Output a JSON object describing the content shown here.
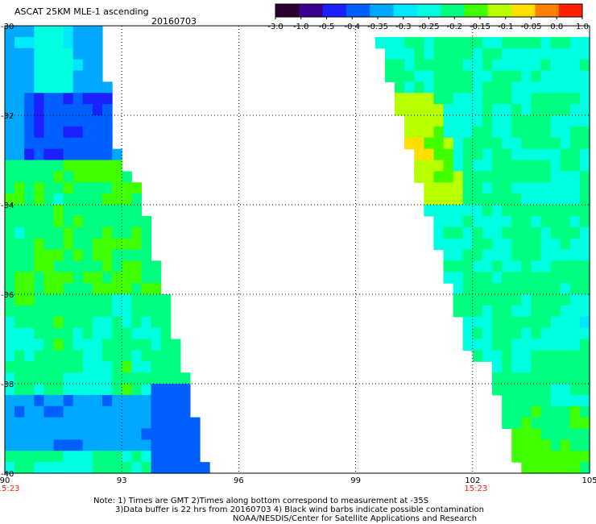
{
  "header": {
    "title": "ASCAT 25KM MLE-1 ascending",
    "date": "20160703"
  },
  "colorbar": {
    "labels": [
      "-3.0",
      "-1.0",
      "-0.5",
      "-0.4",
      "-0.35",
      "-0.3",
      "-0.25",
      "-0.2",
      "-0.15",
      "-0.1",
      "-0.05",
      "0.0",
      "1.0"
    ],
    "colors": [
      "#2a0030",
      "#3c0090",
      "#1a20ff",
      "#0060ff",
      "#00a8ff",
      "#00e8ff",
      "#00ffe0",
      "#00ff80",
      "#40ff00",
      "#b8ff00",
      "#ffe000",
      "#ff8000",
      "#ff2000"
    ]
  },
  "map": {
    "lat_labels": [
      "-30",
      "-32",
      "-34",
      "-36",
      "-38",
      "-40"
    ],
    "lon_labels": [
      "90",
      "93",
      "96",
      "99",
      "102",
      "105"
    ],
    "time_labels": [
      {
        "text": "15:23",
        "lon": 90
      },
      {
        "text": "15:23",
        "lon": 102
      }
    ],
    "time_color": "#ff2000"
  },
  "notes": {
    "line1": "Note: 1) Times are GMT 2)Times along bottom correspond to measurement at -35S",
    "line2": "3)Data buffer is 22 hrs from 20160703 4) Black wind barbs indicate possible contamination",
    "line3": "NOAA/NESDIS/Center for Satellite Applications and Research"
  }
}
